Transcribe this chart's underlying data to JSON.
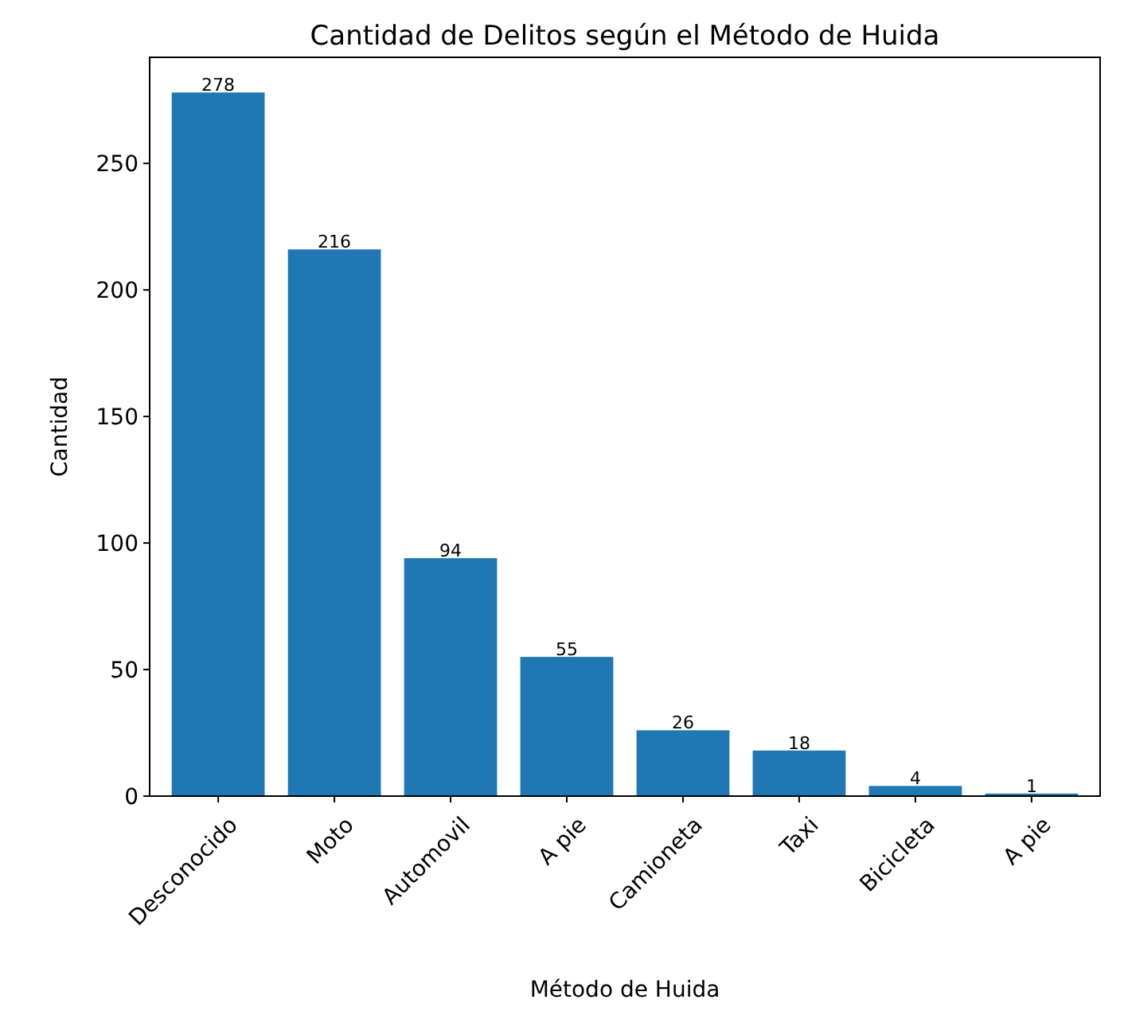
{
  "chart_data": {
    "type": "bar",
    "title": "Cantidad de Delitos según el Método de Huida",
    "xlabel": "Método de Huida",
    "ylabel": "Cantidad",
    "categories": [
      "Desconocido",
      "Moto",
      "Automovil",
      "A pie",
      "Camioneta",
      "Taxi",
      "Bicicleta",
      "A pie"
    ],
    "values": [
      278,
      216,
      94,
      55,
      26,
      18,
      4,
      1
    ],
    "color": "#1f77b4",
    "data_labels": true,
    "ylim": [
      0,
      291.9
    ],
    "yticks": [
      0,
      50,
      100,
      150,
      200,
      250
    ]
  }
}
